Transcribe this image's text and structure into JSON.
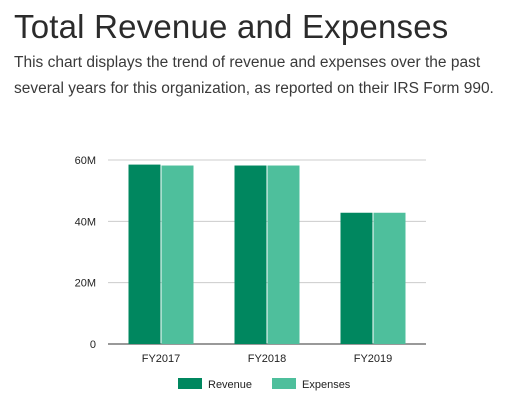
{
  "header": {
    "title": "Total Revenue and Expenses",
    "description": "This chart displays the trend of revenue and expenses over the past several years for this organization, as reported on their IRS Form 990."
  },
  "chart_data": {
    "type": "bar",
    "categories": [
      "FY2017",
      "FY2018",
      "FY2019"
    ],
    "series": [
      {
        "name": "Revenue",
        "color": "#00875f",
        "values": [
          58.5,
          58.2,
          42.8
        ]
      },
      {
        "name": "Expenses",
        "color": "#4ebf9c",
        "values": [
          58.2,
          58.2,
          42.8
        ]
      }
    ],
    "title": "",
    "xlabel": "",
    "ylabel": "",
    "ylim": [
      0,
      60
    ],
    "yticks": [
      0,
      20,
      40,
      60
    ],
    "ytick_labels": [
      "0",
      "20M",
      "40M",
      "60M"
    ],
    "grid": true,
    "legend_position": "bottom"
  }
}
